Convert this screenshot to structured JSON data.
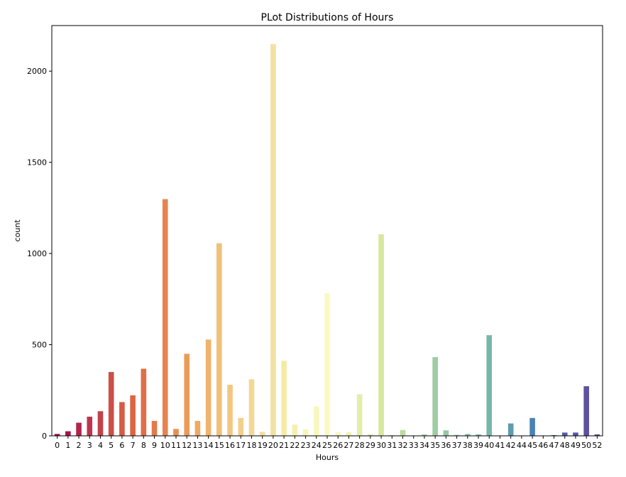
{
  "chart_data": {
    "type": "bar",
    "title": "PLot Distributions of Hours",
    "xlabel": "Hours",
    "ylabel": "count",
    "ylim": [
      0,
      2250
    ],
    "yticks": [
      0,
      500,
      1000,
      1500,
      2000
    ],
    "grid": false,
    "legend": "none",
    "categories": [
      "0",
      "1",
      "2",
      "3",
      "4",
      "5",
      "6",
      "7",
      "8",
      "9",
      "10",
      "11",
      "12",
      "13",
      "14",
      "15",
      "16",
      "17",
      "18",
      "19",
      "20",
      "21",
      "22",
      "23",
      "24",
      "25",
      "26",
      "27",
      "28",
      "29",
      "30",
      "31",
      "32",
      "33",
      "34",
      "35",
      "36",
      "37",
      "38",
      "39",
      "40",
      "41",
      "42",
      "44",
      "45",
      "46",
      "47",
      "48",
      "49",
      "50",
      "52"
    ],
    "values": [
      10,
      25,
      72,
      105,
      135,
      350,
      185,
      222,
      368,
      82,
      1298,
      38,
      450,
      82,
      528,
      1056,
      280,
      98,
      310,
      22,
      2148,
      412,
      62,
      35,
      162,
      782,
      20,
      20,
      228,
      8,
      1105,
      4,
      32,
      2,
      8,
      432,
      30,
      5,
      10,
      8,
      552,
      2,
      68,
      2,
      98,
      2,
      4,
      18,
      18,
      272,
      8
    ],
    "colors": [
      "#9e0142",
      "#a81446",
      "#b2254a",
      "#bc354d",
      "#c44149",
      "#cd4f45",
      "#d55b44",
      "#dc6642",
      "#e06e47",
      "#e37a4b",
      "#e6844f",
      "#e88f53",
      "#eb9b59",
      "#ecaa64",
      "#eeb46d",
      "#f0bf78",
      "#f2c782",
      "#f2cf8c",
      "#f2d796",
      "#f3de9f",
      "#f2e1a1",
      "#f5eba6",
      "#f7efb0",
      "#f9f4b8",
      "#faf7bd",
      "#fbf9c3",
      "#f7f7c0",
      "#eef3b4",
      "#e4eeaa",
      "#dbe9a1",
      "#d7e89d",
      "#c9e29d",
      "#bcdca0",
      "#b0d6a2",
      "#a7d2a2",
      "#9ecda3",
      "#93c8a3",
      "#88c3a3",
      "#7cbca5",
      "#76b9a7",
      "#76b7a9",
      "#6aa9ab",
      "#5e9cae",
      "#548fb1",
      "#4a82b3",
      "#4776b0",
      "#4d69aa",
      "#5160a7",
      "#5658a3",
      "#5e519f",
      "#5e4fa2"
    ]
  }
}
